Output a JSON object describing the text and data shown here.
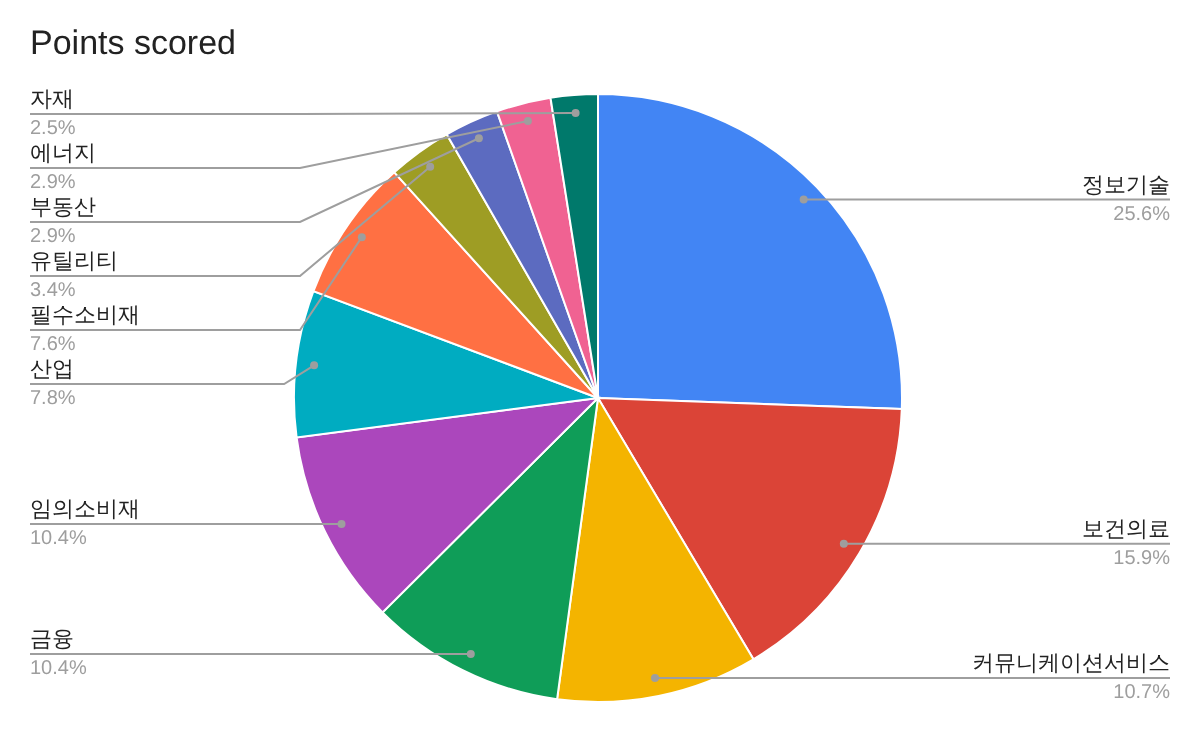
{
  "chart_data": {
    "type": "pie",
    "title": "Points scored",
    "categories": [
      "정보기술",
      "보건의료",
      "커뮤니케이션서비스",
      "금융",
      "임의소비재",
      "산업",
      "필수소비재",
      "유틸리티",
      "부동산",
      "에너지",
      "자재"
    ],
    "values": [
      25.6,
      15.9,
      10.7,
      10.4,
      10.4,
      7.8,
      7.6,
      3.4,
      2.9,
      2.9,
      2.5
    ],
    "colors": [
      "#4285f4",
      "#db4437",
      "#f4b400",
      "#0f9d58",
      "#ab47bc",
      "#00acc1",
      "#ff7043",
      "#9e9d24",
      "#5c6bc0",
      "#f06292",
      "#00796b"
    ],
    "value_labels": [
      "25.6%",
      "15.9%",
      "10.7%",
      "10.4%",
      "10.4%",
      "7.8%",
      "7.6%",
      "3.4%",
      "2.9%",
      "2.9%",
      "2.5%"
    ],
    "legend": false
  }
}
